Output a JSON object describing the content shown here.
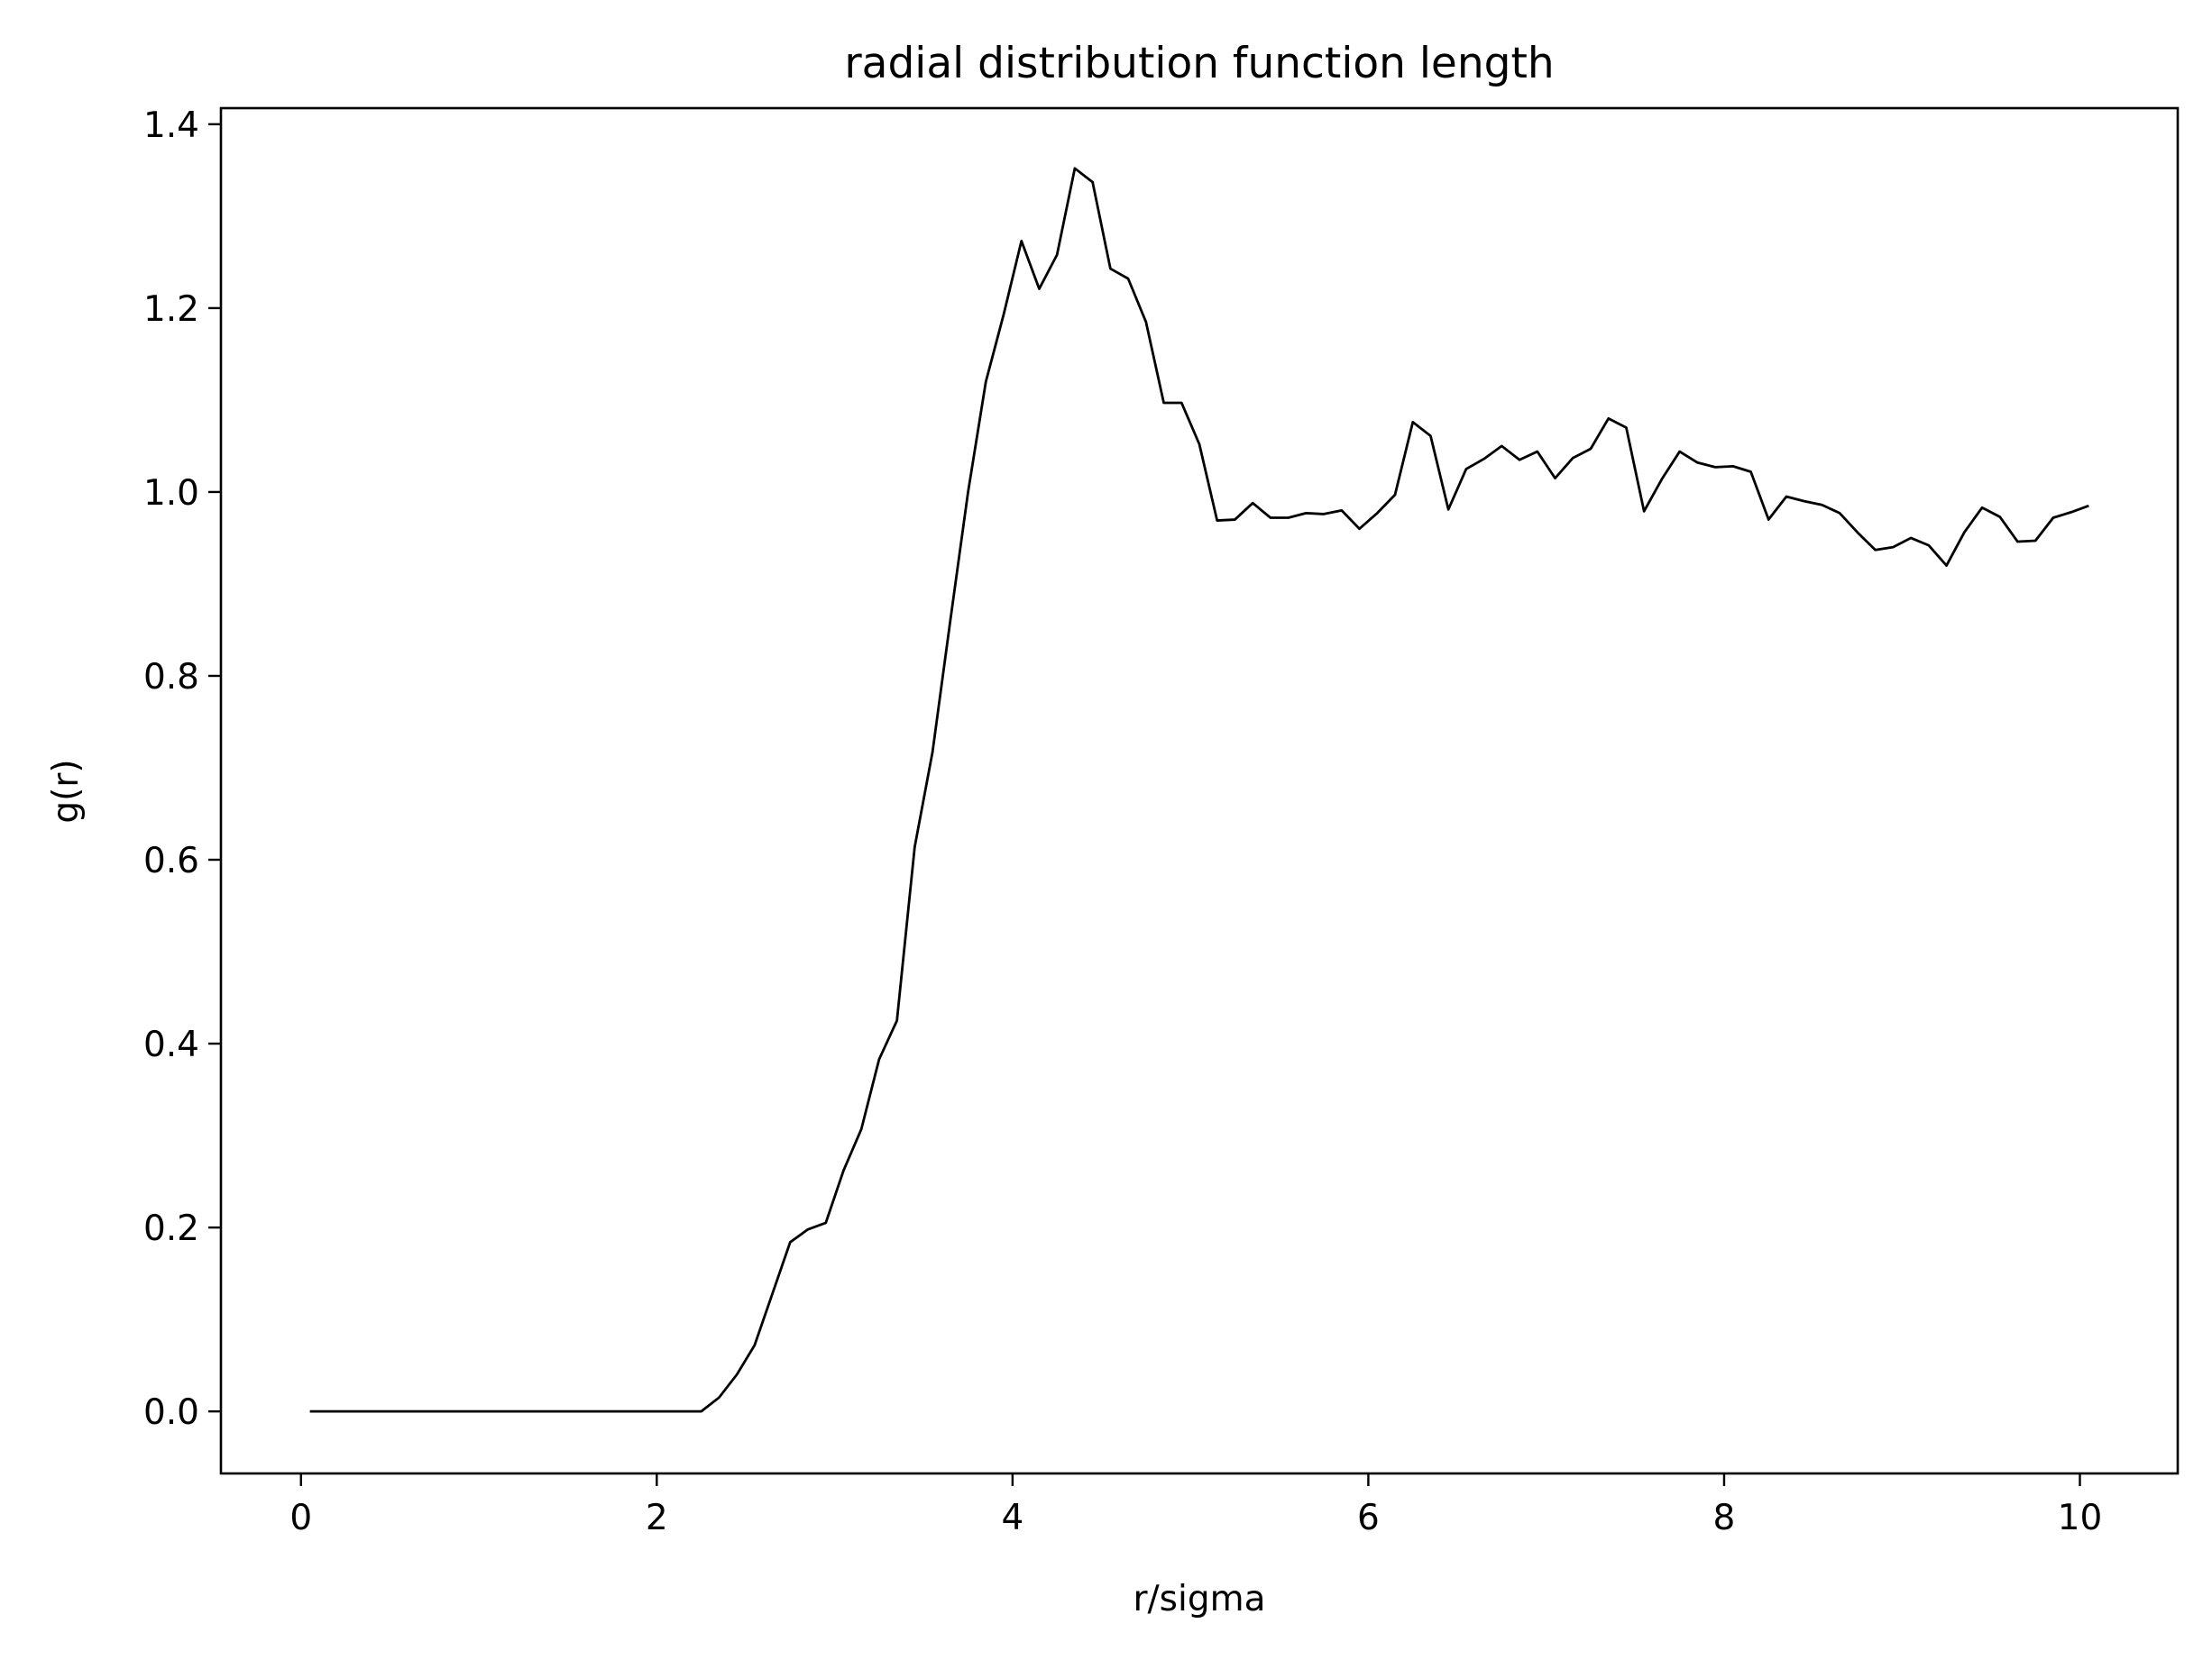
{
  "chart_data": {
    "type": "line",
    "title": "radial distribution function length",
    "xlabel": "r/sigma",
    "ylabel": "g(r)",
    "xlim": [
      -0.45,
      10.55
    ],
    "ylim": [
      -0.0675,
      1.4175
    ],
    "xticks": [
      0,
      2,
      4,
      6,
      8,
      10
    ],
    "xtick_labels": [
      "0",
      "2",
      "4",
      "6",
      "8",
      "10"
    ],
    "yticks": [
      0.0,
      0.2,
      0.4,
      0.6,
      0.8,
      1.0,
      1.2,
      1.4
    ],
    "ytick_labels": [
      "0.0",
      "0.2",
      "0.4",
      "0.6",
      "0.8",
      "1.0",
      "1.2",
      "1.4"
    ],
    "grid": false,
    "line_color": "#000000",
    "series": [
      {
        "x": [
          0.05,
          0.15,
          0.25,
          0.35,
          0.45,
          0.55,
          0.65,
          0.75,
          0.85,
          0.95,
          1.05,
          1.15,
          1.25,
          1.35,
          1.45,
          1.55,
          1.65,
          1.75,
          1.85,
          1.95,
          2.05,
          2.15,
          2.25,
          2.35,
          2.45,
          2.55,
          2.65,
          2.75,
          2.85,
          2.95,
          3.05,
          3.15,
          3.25,
          3.35,
          3.45,
          3.55,
          3.65,
          3.75,
          3.85,
          3.95,
          4.05,
          4.15,
          4.25,
          4.35,
          4.45,
          4.55,
          4.65,
          4.75,
          4.85,
          4.95,
          5.05,
          5.15,
          5.25,
          5.35,
          5.45,
          5.55,
          5.65,
          5.75,
          5.85,
          5.95,
          6.05,
          6.15,
          6.25,
          6.35,
          6.45,
          6.55,
          6.65,
          6.75,
          6.85,
          6.95,
          7.05,
          7.15,
          7.25,
          7.35,
          7.45,
          7.55,
          7.65,
          7.75,
          7.85,
          7.95,
          8.05,
          8.15,
          8.25,
          8.35,
          8.45,
          8.55,
          8.65,
          8.75,
          8.85,
          8.95,
          9.05,
          9.15,
          9.25,
          9.35,
          9.45,
          9.55,
          9.65,
          9.75,
          9.85,
          9.95,
          10.05
        ],
        "y": [
          0,
          0,
          0,
          0,
          0,
          0,
          0,
          0,
          0,
          0,
          0,
          0,
          0,
          0,
          0,
          0,
          0,
          0,
          0,
          0,
          0,
          0,
          0,
          0.015,
          0.04,
          0.072,
          0.128,
          0.184,
          0.198,
          0.205,
          0.262,
          0.307,
          0.383,
          0.425,
          0.614,
          0.717,
          0.86,
          1.0,
          1.12,
          1.193,
          1.273,
          1.221,
          1.258,
          1.352,
          1.337,
          1.243,
          1.232,
          1.185,
          1.097,
          1.097,
          1.052,
          0.969,
          0.97,
          0.988,
          0.972,
          0.972,
          0.977,
          0.976,
          0.98,
          0.96,
          0.977,
          0.997,
          1.076,
          1.061,
          0.981,
          1.025,
          1.036,
          1.05,
          1.035,
          1.044,
          1.015,
          1.037,
          1.047,
          1.08,
          1.07,
          0.979,
          1.014,
          1.044,
          1.032,
          1.027,
          1.028,
          1.022,
          0.97,
          0.995,
          0.99,
          0.986,
          0.977,
          0.956,
          0.937,
          0.94,
          0.95,
          0.942,
          0.92,
          0.956,
          0.983,
          0.973,
          0.946,
          0.947,
          0.972,
          0.978,
          0.985
        ]
      }
    ]
  }
}
